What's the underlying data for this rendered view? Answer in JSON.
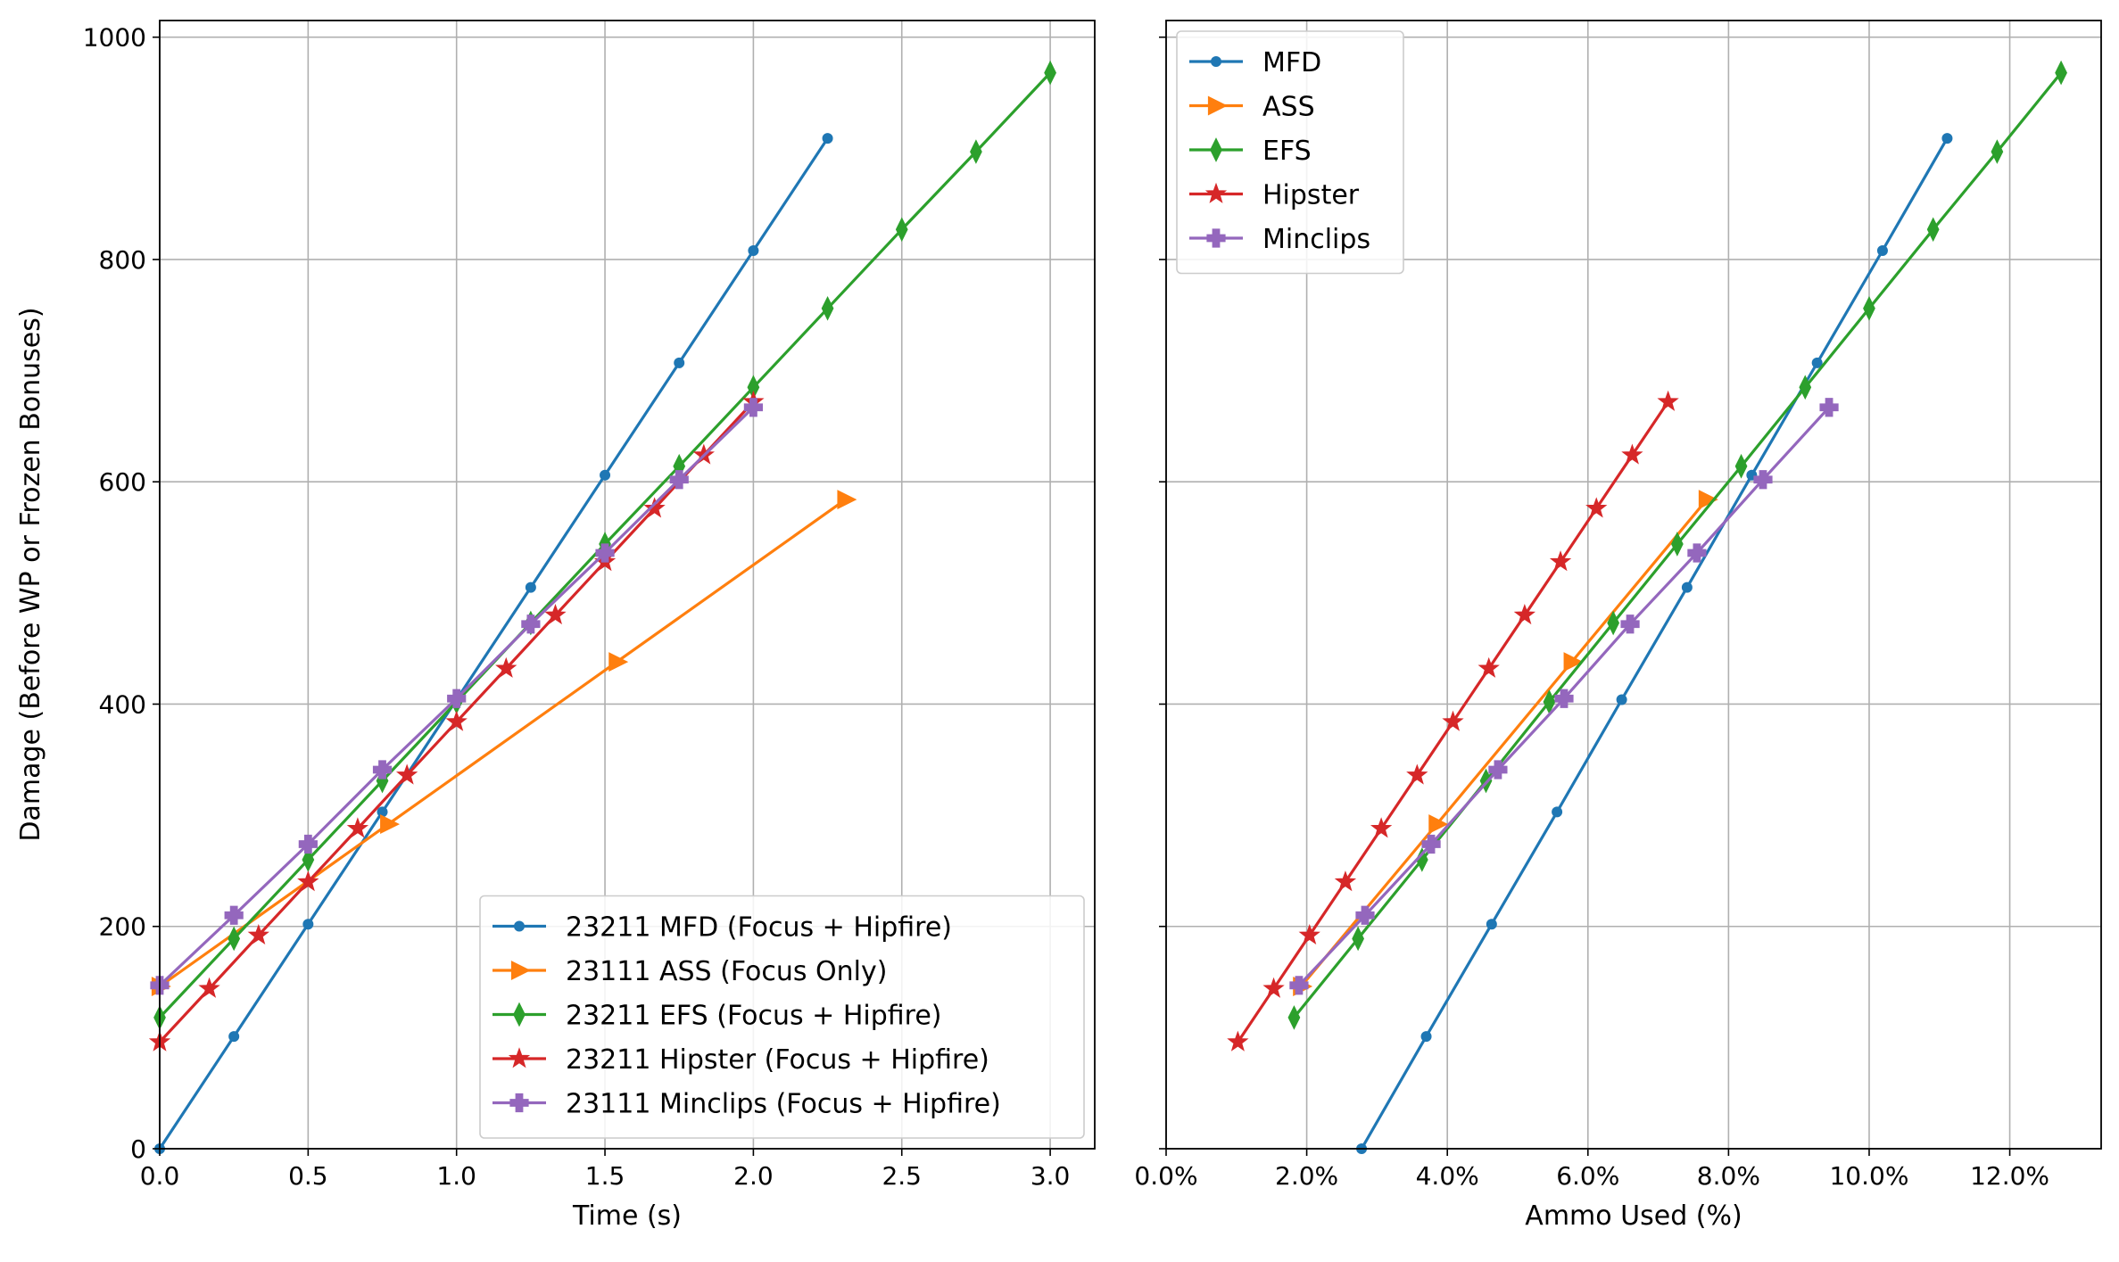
{
  "figure": {
    "shared_ylabel": "Damage (Before WP or Frozen Bonuses)"
  },
  "chart_data": [
    {
      "type": "line",
      "xlabel": "Time (s)",
      "ylabel": "Damage (Before WP or Frozen Bonuses)",
      "xlim": [
        0,
        3.15
      ],
      "ylim": [
        0,
        1015
      ],
      "xticks": [
        0.0,
        0.5,
        1.0,
        1.5,
        2.0,
        2.5,
        3.0
      ],
      "xtick_labels": [
        "0.0",
        "0.5",
        "1.0",
        "1.5",
        "2.0",
        "2.5",
        "3.0"
      ],
      "yticks": [
        0,
        200,
        400,
        600,
        800,
        1000
      ],
      "ytick_labels": [
        "0",
        "200",
        "400",
        "600",
        "800",
        "1000"
      ],
      "grid": true,
      "legend_position": "lower-right",
      "series": [
        {
          "name": "23211 MFD (Focus + Hipfire)",
          "color": "#1f77b4",
          "marker": "circle",
          "x": [
            0,
            0.25,
            0.5,
            0.75,
            1.0,
            1.25,
            1.5,
            1.75,
            2.0,
            2.25
          ],
          "y": [
            0,
            101,
            202,
            303,
            404,
            505,
            606,
            707,
            808,
            909
          ]
        },
        {
          "name": "23111 ASS (Focus Only)",
          "color": "#ff7f0e",
          "marker": "triangle-right",
          "x": [
            0,
            0.77,
            1.54,
            2.31
          ],
          "y": [
            146,
            292,
            438,
            584
          ]
        },
        {
          "name": "23211 EFS (Focus + Hipfire)",
          "color": "#2ca02c",
          "marker": "thin-diamond",
          "x": [
            0,
            0.25,
            0.5,
            0.75,
            1.0,
            1.25,
            1.5,
            1.75,
            2.0,
            2.25,
            2.5,
            2.75,
            3.0
          ],
          "y": [
            118,
            189,
            260,
            331,
            402,
            473,
            544,
            614,
            685,
            756,
            827,
            897,
            968
          ]
        },
        {
          "name": "23211 Hipster (Focus + Hipfire)",
          "color": "#d62728",
          "marker": "star",
          "x": [
            0,
            0.167,
            0.333,
            0.5,
            0.667,
            0.833,
            1.0,
            1.167,
            1.333,
            1.5,
            1.667,
            1.833,
            2.0
          ],
          "y": [
            96,
            144,
            192,
            240,
            288,
            336,
            384,
            432,
            480,
            528,
            576,
            624,
            672
          ]
        },
        {
          "name": "23111 Minclips (Focus + Hipfire)",
          "color": "#9467bd",
          "marker": "plus-filled",
          "x": [
            0,
            0.25,
            0.5,
            0.75,
            1.0,
            1.25,
            1.5,
            1.75,
            2.0
          ],
          "y": [
            147,
            210,
            274,
            341,
            405,
            472,
            536,
            602,
            667
          ]
        }
      ]
    },
    {
      "type": "line",
      "xlabel": "Ammo Used (%)",
      "xlim": [
        0,
        13.3
      ],
      "ylim": [
        0,
        1015
      ],
      "xticks": [
        0,
        2,
        4,
        6,
        8,
        10,
        12
      ],
      "xtick_labels": [
        "0.0%",
        "2.0%",
        "4.0%",
        "6.0%",
        "8.0%",
        "10.0%",
        "12.0%"
      ],
      "yticks": [
        0,
        200,
        400,
        600,
        800,
        1000
      ],
      "ytick_labels": [
        "0",
        "200",
        "400",
        "600",
        "800",
        "1000"
      ],
      "grid": true,
      "sharey": true,
      "legend_position": "upper-left",
      "series": [
        {
          "name": "MFD",
          "color": "#1f77b4",
          "marker": "circle",
          "x": [
            2.78,
            3.7,
            4.63,
            5.56,
            6.48,
            7.41,
            8.33,
            9.26,
            10.19,
            11.11
          ],
          "y": [
            0,
            101,
            202,
            303,
            404,
            505,
            606,
            707,
            808,
            909
          ]
        },
        {
          "name": "ASS",
          "color": "#ff7f0e",
          "marker": "triangle-right",
          "x": [
            1.92,
            3.85,
            5.77,
            7.69
          ],
          "y": [
            146,
            292,
            438,
            584
          ]
        },
        {
          "name": "EFS",
          "color": "#2ca02c",
          "marker": "thin-diamond",
          "x": [
            1.82,
            2.73,
            3.64,
            4.55,
            5.45,
            6.36,
            7.27,
            8.18,
            9.09,
            10.0,
            10.91,
            11.82,
            12.73
          ],
          "y": [
            118,
            189,
            260,
            331,
            402,
            473,
            544,
            614,
            685,
            756,
            827,
            897,
            968
          ]
        },
        {
          "name": "Hipster",
          "color": "#d62728",
          "marker": "star",
          "x": [
            1.02,
            1.53,
            2.04,
            2.55,
            3.06,
            3.57,
            4.08,
            4.59,
            5.1,
            5.61,
            6.12,
            6.63,
            7.14
          ],
          "y": [
            96,
            144,
            192,
            240,
            288,
            336,
            384,
            432,
            480,
            528,
            576,
            624,
            672
          ]
        },
        {
          "name": "Minclips",
          "color": "#9467bd",
          "marker": "plus-filled",
          "x": [
            1.89,
            2.83,
            3.77,
            4.72,
            5.66,
            6.6,
            7.55,
            8.49,
            9.43
          ],
          "y": [
            147,
            210,
            274,
            341,
            405,
            472,
            536,
            602,
            667
          ]
        }
      ]
    }
  ]
}
